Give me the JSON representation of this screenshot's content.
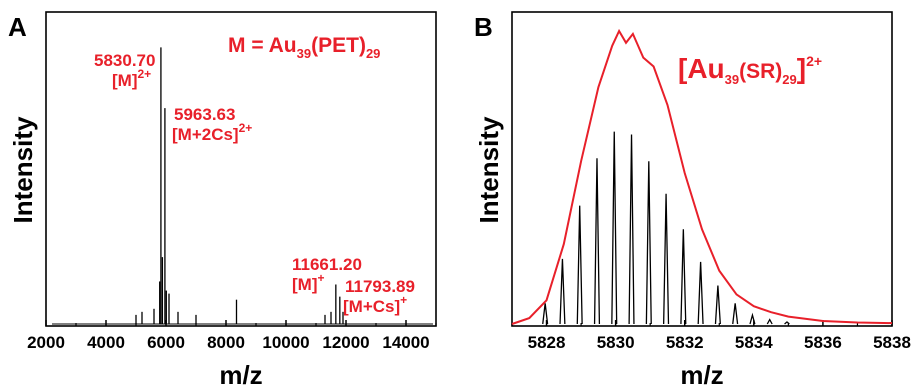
{
  "colors": {
    "annotation": "#e8202a",
    "spectrum": "#000000",
    "envelope": "#e8202a"
  },
  "chart_data": [
    {
      "panel": "A",
      "type": "line",
      "formula": {
        "prefix": "M = Au",
        "sub1": "39",
        "mid": "(PET)",
        "sub2": "29"
      },
      "xlabel": "m/z",
      "ylabel": "Intensity",
      "xlim": [
        2000,
        15000
      ],
      "ylim": [
        0,
        100
      ],
      "xticks": [
        "2000",
        "4000",
        "6000",
        "8000",
        "10000",
        "12000",
        "14000"
      ],
      "peaks": [
        {
          "x": 5830.7,
          "y": 91
        },
        {
          "x": 5963.63,
          "y": 71
        },
        {
          "x": 5880,
          "y": 22
        },
        {
          "x": 5790,
          "y": 14
        },
        {
          "x": 6010,
          "y": 11
        },
        {
          "x": 6100,
          "y": 10
        },
        {
          "x": 5600,
          "y": 5
        },
        {
          "x": 5200,
          "y": 4
        },
        {
          "x": 5000,
          "y": 3
        },
        {
          "x": 6400,
          "y": 4
        },
        {
          "x": 7000,
          "y": 3
        },
        {
          "x": 8350,
          "y": 8
        },
        {
          "x": 11661.2,
          "y": 13
        },
        {
          "x": 11793.89,
          "y": 9
        },
        {
          "x": 11500,
          "y": 4
        },
        {
          "x": 11900,
          "y": 4
        },
        {
          "x": 11300,
          "y": 3
        }
      ],
      "annotations": [
        {
          "mass": "5830.70",
          "ion": "[M]",
          "charge": "2+"
        },
        {
          "mass": "5963.63",
          "ion": "[M+2Cs]",
          "charge": "2+"
        },
        {
          "mass": "11661.20",
          "ion": "[M]",
          "charge": "+"
        },
        {
          "mass": "11793.89",
          "ion": "[M+Cs]",
          "charge": "+"
        }
      ]
    },
    {
      "panel": "B",
      "type": "line",
      "formula": {
        "prefix": "[Au",
        "sub1": "39",
        "mid": "(SR)",
        "sub2": "29",
        "suffix": "]",
        "charge": "2+"
      },
      "xlabel": "m/z",
      "ylabel": "Intensity",
      "xlim": [
        5827,
        5838
      ],
      "ylim": [
        0,
        100
      ],
      "xticks": [
        "5828",
        "5830",
        "5832",
        "5834",
        "5836",
        "5838"
      ],
      "sticks": [
        {
          "x": 5827.96,
          "y": 7
        },
        {
          "x": 5828.46,
          "y": 22
        },
        {
          "x": 5828.96,
          "y": 40
        },
        {
          "x": 5829.46,
          "y": 56
        },
        {
          "x": 5829.96,
          "y": 65
        },
        {
          "x": 5830.46,
          "y": 64
        },
        {
          "x": 5830.96,
          "y": 55
        },
        {
          "x": 5831.46,
          "y": 44
        },
        {
          "x": 5831.96,
          "y": 32
        },
        {
          "x": 5832.46,
          "y": 21
        },
        {
          "x": 5832.96,
          "y": 13
        },
        {
          "x": 5833.46,
          "y": 7
        },
        {
          "x": 5833.96,
          "y": 3
        },
        {
          "x": 5834.46,
          "y": 1.5
        },
        {
          "x": 5834.96,
          "y": 0.7
        }
      ],
      "envelope": [
        {
          "x": 5827,
          "y": 0
        },
        {
          "x": 5827.5,
          "y": 2
        },
        {
          "x": 5828,
          "y": 8
        },
        {
          "x": 5828.5,
          "y": 27
        },
        {
          "x": 5829,
          "y": 55
        },
        {
          "x": 5829.5,
          "y": 80
        },
        {
          "x": 5829.9,
          "y": 94
        },
        {
          "x": 5830.1,
          "y": 99
        },
        {
          "x": 5830.3,
          "y": 95
        },
        {
          "x": 5830.5,
          "y": 98
        },
        {
          "x": 5830.8,
          "y": 90
        },
        {
          "x": 5831.1,
          "y": 87
        },
        {
          "x": 5831.5,
          "y": 74
        },
        {
          "x": 5832,
          "y": 51
        },
        {
          "x": 5832.5,
          "y": 32
        },
        {
          "x": 5833,
          "y": 18
        },
        {
          "x": 5833.5,
          "y": 10
        },
        {
          "x": 5834,
          "y": 6
        },
        {
          "x": 5834.5,
          "y": 4
        },
        {
          "x": 5835,
          "y": 2.5
        },
        {
          "x": 5836,
          "y": 1
        },
        {
          "x": 5837,
          "y": 0.5
        },
        {
          "x": 5838,
          "y": 0.3
        }
      ]
    }
  ]
}
